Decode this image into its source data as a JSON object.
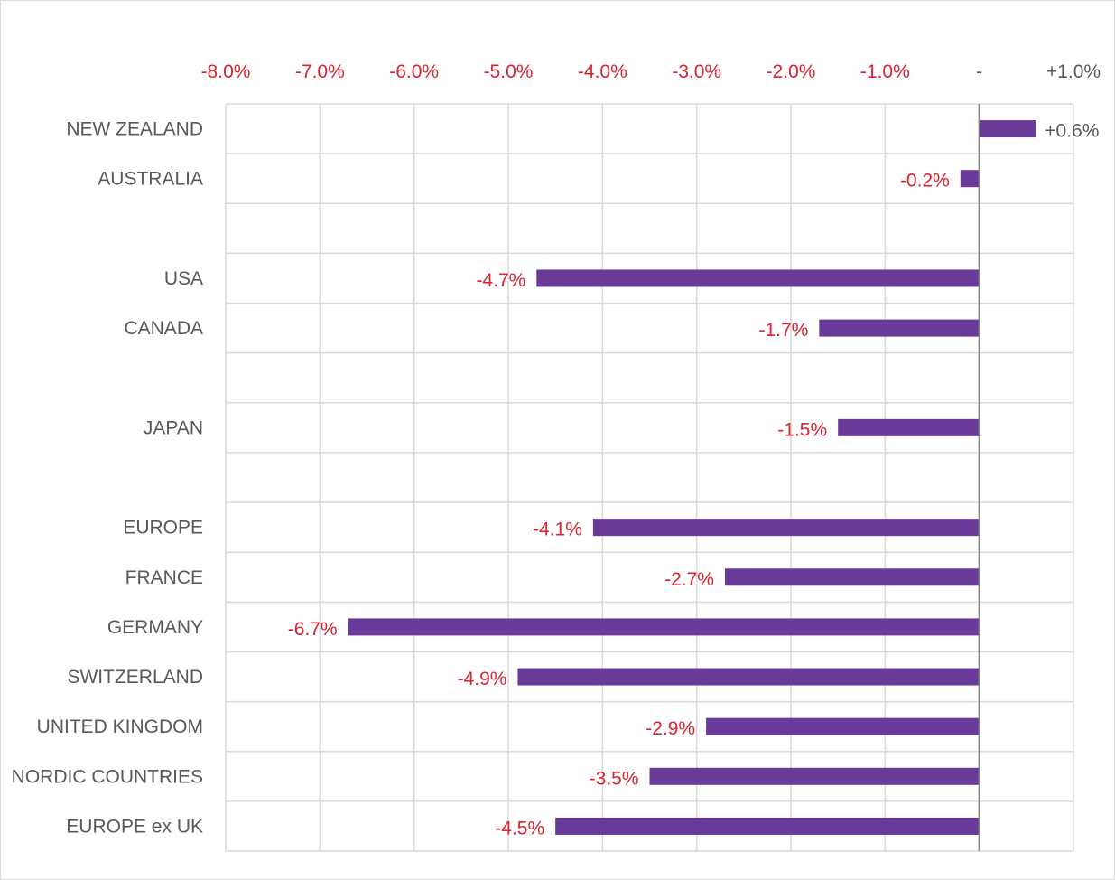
{
  "chart_data": {
    "type": "bar",
    "orientation": "horizontal",
    "categories": [
      "NEW ZEALAND",
      "AUSTRALIA",
      "",
      "USA",
      "CANADA",
      "",
      "JAPAN",
      "",
      "EUROPE",
      "FRANCE",
      "GERMANY",
      "SWITZERLAND",
      "UNITED KINGDOM",
      "NORDIC COUNTRIES",
      "EUROPE ex UK"
    ],
    "values": [
      0.6,
      -0.2,
      null,
      -4.7,
      -1.7,
      null,
      -1.5,
      null,
      -4.1,
      -2.7,
      -6.7,
      -4.9,
      -2.9,
      -3.5,
      -4.5
    ],
    "data_labels": [
      "+0.6%",
      "-0.2%",
      "",
      "-4.7%",
      "-1.7%",
      "",
      "-1.5%",
      "",
      "-4.1%",
      "-2.7%",
      "-6.7%",
      "-4.9%",
      "-2.9%",
      "-3.5%",
      "-4.5%"
    ],
    "x_ticks": [
      -8,
      -7,
      -6,
      -5,
      -4,
      -3,
      -2,
      -1,
      0,
      1
    ],
    "x_tick_labels": [
      "-8.0%",
      "-7.0%",
      "-6.0%",
      "-5.0%",
      "-4.0%",
      "-3.0%",
      "-2.0%",
      "-1.0%",
      "-",
      "+1.0%"
    ],
    "xlim": [
      -8,
      1
    ],
    "axis_position": "top",
    "grid": true,
    "legend": "none",
    "title": "",
    "xlabel": "",
    "ylabel": "",
    "colors": {
      "bar": "#6a3a98",
      "negative_label": "#d9232e",
      "positive_label": "#595959",
      "category_label": "#595959",
      "grid": "#d9d9d9",
      "zero_line": "#808080"
    }
  }
}
